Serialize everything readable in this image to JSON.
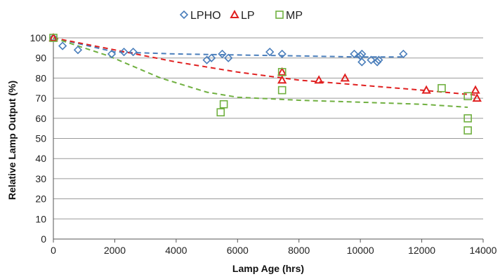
{
  "chart_data": {
    "type": "scatter",
    "title": "",
    "xlabel": "Lamp Age (hrs)",
    "ylabel": "Relative Lamp Output (%)",
    "xlim": [
      0,
      14000
    ],
    "ylim": [
      0,
      100
    ],
    "xticks": [
      0,
      2000,
      4000,
      6000,
      8000,
      10000,
      12000,
      14000
    ],
    "yticks": [
      0,
      10,
      20,
      30,
      40,
      50,
      60,
      70,
      80,
      90,
      100
    ],
    "grid": "horizontal",
    "legend_position": "top",
    "series": [
      {
        "name": "LPHO",
        "marker": "diamond",
        "color": "#4a7ebb",
        "points": [
          [
            0,
            100
          ],
          [
            300,
            96
          ],
          [
            800,
            94
          ],
          [
            1900,
            92
          ],
          [
            2300,
            93
          ],
          [
            2600,
            93
          ],
          [
            5000,
            89
          ],
          [
            5150,
            90
          ],
          [
            5500,
            92
          ],
          [
            5700,
            90
          ],
          [
            7050,
            93
          ],
          [
            7450,
            92
          ],
          [
            9800,
            92
          ],
          [
            10000,
            91
          ],
          [
            10050,
            92
          ],
          [
            10050,
            88
          ],
          [
            10350,
            89
          ],
          [
            10550,
            88
          ],
          [
            10600,
            89
          ],
          [
            11400,
            92
          ]
        ],
        "trend": [
          [
            0,
            100
          ],
          [
            2000,
            93
          ],
          [
            4000,
            92
          ],
          [
            6000,
            91.5
          ],
          [
            8000,
            91
          ],
          [
            10000,
            90.5
          ],
          [
            11400,
            90.5
          ]
        ]
      },
      {
        "name": "LP",
        "marker": "triangle",
        "color": "#e02020",
        "points": [
          [
            0,
            100
          ],
          [
            7450,
            79
          ],
          [
            7450,
            83
          ],
          [
            8650,
            79
          ],
          [
            9500,
            80
          ],
          [
            12150,
            74
          ],
          [
            13750,
            74
          ],
          [
            13800,
            70
          ]
        ],
        "trend": [
          [
            0,
            100
          ],
          [
            2000,
            94
          ],
          [
            4000,
            88
          ],
          [
            6000,
            83
          ],
          [
            8000,
            79
          ],
          [
            10000,
            76.5
          ],
          [
            12000,
            74
          ],
          [
            13800,
            71.5
          ]
        ]
      },
      {
        "name": "MP",
        "marker": "square",
        "color": "#70b040",
        "points": [
          [
            0,
            100
          ],
          [
            5450,
            63
          ],
          [
            5550,
            67
          ],
          [
            7450,
            74
          ],
          [
            7450,
            83
          ],
          [
            12650,
            75
          ],
          [
            13500,
            71
          ],
          [
            13500,
            60
          ],
          [
            13500,
            54
          ]
        ],
        "trend": [
          [
            0,
            100
          ],
          [
            1800,
            91
          ],
          [
            3500,
            80
          ],
          [
            5000,
            73
          ],
          [
            6000,
            70.5
          ],
          [
            8000,
            69
          ],
          [
            10000,
            68
          ],
          [
            12000,
            67
          ],
          [
            13500,
            65.5
          ]
        ]
      }
    ]
  }
}
